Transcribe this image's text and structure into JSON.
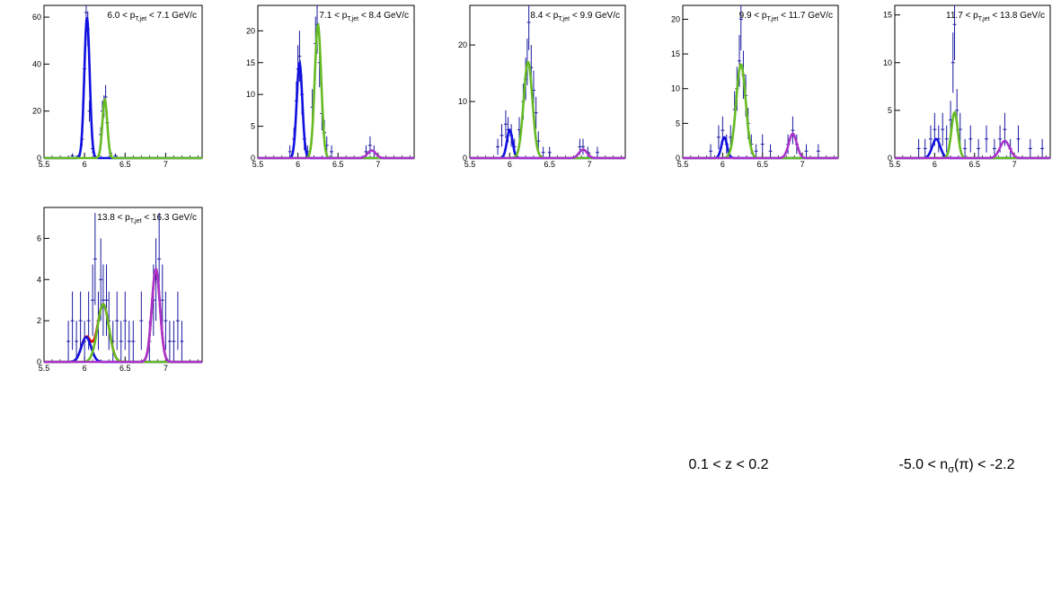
{
  "colors": {
    "data_points": "#1a1aa0",
    "peak_blue": "#1010e0",
    "peak_green": "#66bb22",
    "peak_purple": "#aa33cc",
    "total_fit": "#dd0000",
    "frame": "#000000"
  },
  "footer": {
    "z_range": "0.1 < z < 0.2",
    "nsigma_prefix": "-5.0 < n",
    "nsigma_sub": "σ",
    "nsigma_suffix": "(π) < -2.2"
  },
  "chart_data": [
    {
      "type": "scatter",
      "title_parts": {
        "lo": "6.0",
        "hi": "7.1",
        "sub": "T,jet",
        "unit": "GeV/c"
      },
      "xlim": [
        5.5,
        7.45
      ],
      "ylim": [
        0,
        65
      ],
      "xticks": [
        {
          "v": 5.5,
          "t": "5.5"
        },
        {
          "v": 6,
          "t": "6"
        },
        {
          "v": 6.5,
          "t": "6.5"
        },
        {
          "v": 7,
          "t": "7"
        }
      ],
      "yticks": [
        {
          "v": 0,
          "t": "0"
        },
        {
          "v": 20,
          "t": "20"
        },
        {
          "v": 40,
          "t": "40"
        },
        {
          "v": 60,
          "t": "60"
        }
      ],
      "peaks": [
        {
          "name": "blue",
          "mu": 6.03,
          "sigma": 0.033,
          "amp": 60
        },
        {
          "name": "green",
          "mu": 6.25,
          "sigma": 0.03,
          "amp": 25
        }
      ],
      "points": [
        [
          5.8,
          0
        ],
        [
          5.85,
          1
        ],
        [
          5.93,
          1
        ],
        [
          5.97,
          8
        ],
        [
          6.0,
          38
        ],
        [
          6.02,
          62
        ],
        [
          6.04,
          55
        ],
        [
          6.06,
          20
        ],
        [
          6.1,
          4
        ],
        [
          6.15,
          0
        ],
        [
          6.2,
          10
        ],
        [
          6.22,
          20
        ],
        [
          6.24,
          22
        ],
        [
          6.26,
          26
        ],
        [
          6.28,
          15
        ],
        [
          6.32,
          2
        ],
        [
          6.38,
          1
        ],
        [
          6.45,
          0
        ]
      ]
    },
    {
      "type": "scatter",
      "title_parts": {
        "lo": "7.1",
        "hi": "8.4",
        "sub": "T,jet",
        "unit": "GeV/c"
      },
      "xlim": [
        5.5,
        7.45
      ],
      "ylim": [
        0,
        24
      ],
      "xticks": [
        {
          "v": 5.5,
          "t": "5.5"
        },
        {
          "v": 6,
          "t": "6"
        },
        {
          "v": 6.5,
          "t": "6.5"
        },
        {
          "v": 7,
          "t": "7"
        }
      ],
      "yticks": [
        {
          "v": 0,
          "t": "0"
        },
        {
          "v": 5,
          "t": "5"
        },
        {
          "v": 10,
          "t": "10"
        },
        {
          "v": 15,
          "t": "15"
        },
        {
          "v": 20,
          "t": "20"
        }
      ],
      "peaks": [
        {
          "name": "blue",
          "mu": 6.02,
          "sigma": 0.035,
          "amp": 15
        },
        {
          "name": "green",
          "mu": 6.25,
          "sigma": 0.04,
          "amp": 21
        },
        {
          "name": "purple",
          "mu": 6.92,
          "sigma": 0.05,
          "amp": 1.2
        }
      ],
      "points": [
        [
          5.9,
          1
        ],
        [
          5.95,
          3
        ],
        [
          5.98,
          9
        ],
        [
          6.0,
          14
        ],
        [
          6.02,
          16
        ],
        [
          6.05,
          10
        ],
        [
          6.08,
          3
        ],
        [
          6.12,
          1
        ],
        [
          6.18,
          8
        ],
        [
          6.22,
          18
        ],
        [
          6.24,
          21
        ],
        [
          6.27,
          15
        ],
        [
          6.3,
          7
        ],
        [
          6.33,
          4
        ],
        [
          6.36,
          2
        ],
        [
          6.42,
          1
        ],
        [
          6.85,
          1
        ],
        [
          6.9,
          2
        ],
        [
          6.95,
          1
        ]
      ]
    },
    {
      "type": "scatter",
      "title_parts": {
        "lo": "8.4",
        "hi": "9.9",
        "sub": "T,jet",
        "unit": "GeV/c"
      },
      "xlim": [
        5.5,
        7.45
      ],
      "ylim": [
        0,
        27
      ],
      "xticks": [
        {
          "v": 5.5,
          "t": "5.5"
        },
        {
          "v": 6,
          "t": "6"
        },
        {
          "v": 6.5,
          "t": "6.5"
        },
        {
          "v": 7,
          "t": "7"
        }
      ],
      "yticks": [
        {
          "v": 0,
          "t": "0"
        },
        {
          "v": 10,
          "t": "10"
        },
        {
          "v": 20,
          "t": "20"
        }
      ],
      "peaks": [
        {
          "name": "blue",
          "mu": 6.0,
          "sigma": 0.035,
          "amp": 5
        },
        {
          "name": "green",
          "mu": 6.23,
          "sigma": 0.055,
          "amp": 17
        },
        {
          "name": "purple",
          "mu": 6.92,
          "sigma": 0.05,
          "amp": 1.5
        }
      ],
      "points": [
        [
          5.85,
          2
        ],
        [
          5.9,
          4
        ],
        [
          5.95,
          6
        ],
        [
          5.98,
          5
        ],
        [
          6.02,
          4
        ],
        [
          6.06,
          2
        ],
        [
          6.12,
          5
        ],
        [
          6.17,
          10
        ],
        [
          6.2,
          14
        ],
        [
          6.22,
          17
        ],
        [
          6.24,
          24
        ],
        [
          6.27,
          16
        ],
        [
          6.3,
          12
        ],
        [
          6.33,
          8
        ],
        [
          6.36,
          3
        ],
        [
          6.42,
          1
        ],
        [
          6.5,
          1
        ],
        [
          6.88,
          2
        ],
        [
          6.92,
          2
        ],
        [
          6.98,
          1
        ],
        [
          7.1,
          1
        ]
      ]
    },
    {
      "type": "scatter",
      "title_parts": {
        "lo": "9.9",
        "hi": "11.7",
        "sub": "T,jet",
        "unit": "GeV/c"
      },
      "xlim": [
        5.5,
        7.45
      ],
      "ylim": [
        0,
        22
      ],
      "xticks": [
        {
          "v": 5.5,
          "t": "5.5"
        },
        {
          "v": 6,
          "t": "6"
        },
        {
          "v": 6.5,
          "t": "6.5"
        },
        {
          "v": 7,
          "t": "7"
        }
      ],
      "yticks": [
        {
          "v": 0,
          "t": "0"
        },
        {
          "v": 5,
          "t": "5"
        },
        {
          "v": 10,
          "t": "10"
        },
        {
          "v": 15,
          "t": "15"
        },
        {
          "v": 20,
          "t": "20"
        }
      ],
      "peaks": [
        {
          "name": "blue",
          "mu": 6.02,
          "sigma": 0.035,
          "amp": 3
        },
        {
          "name": "green",
          "mu": 6.23,
          "sigma": 0.06,
          "amp": 13.5
        },
        {
          "name": "purple",
          "mu": 6.88,
          "sigma": 0.05,
          "amp": 3.5
        }
      ],
      "points": [
        [
          5.85,
          1
        ],
        [
          5.95,
          3
        ],
        [
          6.0,
          4
        ],
        [
          6.05,
          2
        ],
        [
          6.1,
          3
        ],
        [
          6.15,
          7
        ],
        [
          6.18,
          10
        ],
        [
          6.21,
          14
        ],
        [
          6.23,
          20
        ],
        [
          6.26,
          12
        ],
        [
          6.29,
          9
        ],
        [
          6.32,
          5
        ],
        [
          6.36,
          2
        ],
        [
          6.42,
          1
        ],
        [
          6.5,
          2
        ],
        [
          6.6,
          1
        ],
        [
          6.82,
          2
        ],
        [
          6.88,
          4
        ],
        [
          6.93,
          2
        ],
        [
          7.05,
          1
        ],
        [
          7.2,
          1
        ]
      ]
    },
    {
      "type": "scatter",
      "title_parts": {
        "lo": "11.7",
        "hi": "13.8",
        "sub": "T,jet",
        "unit": "GeV/c"
      },
      "xlim": [
        5.5,
        7.45
      ],
      "ylim": [
        0,
        16
      ],
      "xticks": [
        {
          "v": 5.5,
          "t": "5.5"
        },
        {
          "v": 6,
          "t": "6"
        },
        {
          "v": 6.5,
          "t": "6.5"
        },
        {
          "v": 7,
          "t": "7"
        }
      ],
      "yticks": [
        {
          "v": 0,
          "t": "0"
        },
        {
          "v": 5,
          "t": "5"
        },
        {
          "v": 10,
          "t": "10"
        },
        {
          "v": 15,
          "t": "15"
        }
      ],
      "peaks": [
        {
          "name": "blue",
          "mu": 6.02,
          "sigma": 0.05,
          "amp": 2
        },
        {
          "name": "green",
          "mu": 6.25,
          "sigma": 0.04,
          "amp": 4.8
        },
        {
          "name": "purple",
          "mu": 6.88,
          "sigma": 0.06,
          "amp": 1.8
        }
      ],
      "points": [
        [
          5.8,
          1
        ],
        [
          5.88,
          1
        ],
        [
          5.95,
          2
        ],
        [
          6.0,
          3
        ],
        [
          6.05,
          2
        ],
        [
          6.1,
          3
        ],
        [
          6.15,
          2
        ],
        [
          6.2,
          4
        ],
        [
          6.23,
          10
        ],
        [
          6.25,
          14
        ],
        [
          6.28,
          5
        ],
        [
          6.32,
          3
        ],
        [
          6.38,
          1
        ],
        [
          6.45,
          2
        ],
        [
          6.55,
          1
        ],
        [
          6.65,
          2
        ],
        [
          6.75,
          1
        ],
        [
          6.82,
          2
        ],
        [
          6.88,
          3
        ],
        [
          6.95,
          1
        ],
        [
          7.05,
          2
        ],
        [
          7.2,
          1
        ],
        [
          7.35,
          1
        ]
      ]
    },
    {
      "type": "scatter",
      "title_parts": {
        "lo": "13.8",
        "hi": "16.3",
        "sub": "T,jet",
        "unit": "GeV/c"
      },
      "xlim": [
        5.5,
        7.45
      ],
      "ylim": [
        0,
        7.5
      ],
      "xticks": [
        {
          "v": 5.5,
          "t": "5.5"
        },
        {
          "v": 6,
          "t": "6"
        },
        {
          "v": 6.5,
          "t": "6.5"
        },
        {
          "v": 7,
          "t": "7"
        }
      ],
      "yticks": [
        {
          "v": 0,
          "t": "0"
        },
        {
          "v": 2,
          "t": "2"
        },
        {
          "v": 4,
          "t": "4"
        },
        {
          "v": 6,
          "t": "6"
        }
      ],
      "peaks": [
        {
          "name": "blue",
          "mu": 6.02,
          "sigma": 0.06,
          "amp": 1.2
        },
        {
          "name": "green",
          "mu": 6.23,
          "sigma": 0.07,
          "amp": 2.8
        },
        {
          "name": "purple",
          "mu": 6.88,
          "sigma": 0.05,
          "amp": 4.5
        }
      ],
      "total_fit": true,
      "points": [
        [
          5.8,
          1
        ],
        [
          5.85,
          2
        ],
        [
          5.9,
          1
        ],
        [
          5.95,
          2
        ],
        [
          6.0,
          1
        ],
        [
          6.05,
          2
        ],
        [
          6.1,
          3
        ],
        [
          6.13,
          5
        ],
        [
          6.17,
          2
        ],
        [
          6.2,
          4
        ],
        [
          6.23,
          3
        ],
        [
          6.27,
          3
        ],
        [
          6.3,
          2
        ],
        [
          6.35,
          1
        ],
        [
          6.4,
          2
        ],
        [
          6.45,
          1
        ],
        [
          6.5,
          2
        ],
        [
          6.55,
          1
        ],
        [
          6.6,
          1
        ],
        [
          6.7,
          2
        ],
        [
          6.8,
          1
        ],
        [
          6.85,
          3
        ],
        [
          6.88,
          4
        ],
        [
          6.92,
          5
        ],
        [
          6.96,
          3
        ],
        [
          7.0,
          2
        ],
        [
          7.05,
          1
        ],
        [
          7.1,
          1
        ],
        [
          7.15,
          2
        ],
        [
          7.2,
          1
        ]
      ]
    }
  ]
}
